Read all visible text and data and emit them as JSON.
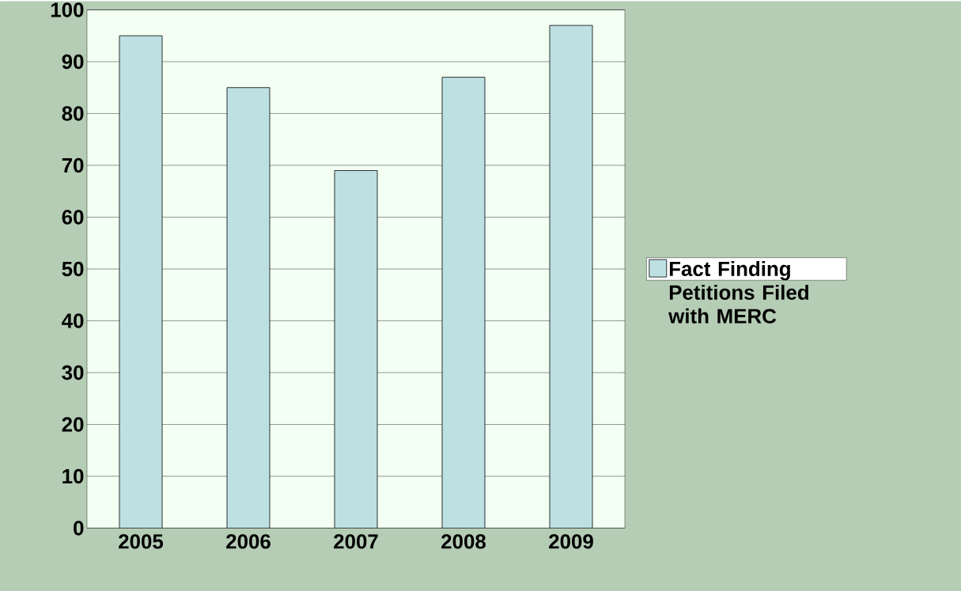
{
  "chart_data": {
    "type": "bar",
    "categories": [
      "2005",
      "2006",
      "2007",
      "2008",
      "2009"
    ],
    "series": [
      {
        "name": "Fact Finding Petitions Filed with MERC",
        "color": "#bde0e3",
        "values": [
          95,
          85,
          69,
          87,
          97
        ]
      }
    ],
    "ylim": [
      0,
      100
    ],
    "yticks": [
      0,
      10,
      20,
      30,
      40,
      50,
      60,
      70,
      80,
      90,
      100
    ],
    "grid": "y",
    "legend": "right"
  }
}
